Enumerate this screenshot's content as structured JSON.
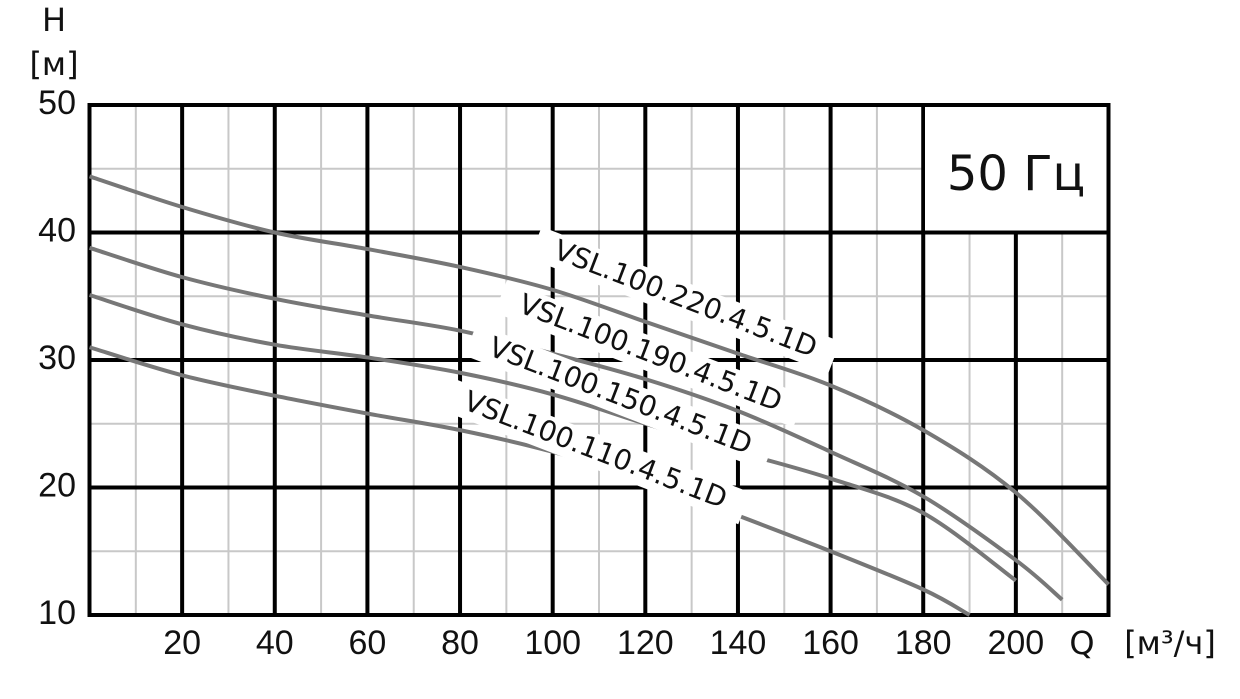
{
  "chart_data": {
    "type": "line",
    "y_label": "H",
    "y_unit": "[м]",
    "x_label": "Q",
    "x_unit": "[м³/ч]",
    "annotation": "50 Гц",
    "xlim": [
      0,
      220
    ],
    "xticks": [
      20,
      40,
      60,
      80,
      100,
      120,
      140,
      160,
      180,
      200
    ],
    "minor_xticks": [
      10,
      30,
      50,
      70,
      90,
      110,
      130,
      150,
      170,
      190,
      210
    ],
    "ylim": [
      10,
      50
    ],
    "yticks": [
      10,
      20,
      30,
      40,
      50
    ],
    "minor_yticks": [
      15,
      25,
      35,
      45
    ],
    "grid": true,
    "series": [
      {
        "name": "VSL.100.220.4.5.1D",
        "color": "#777777",
        "x": [
          0,
          20,
          40,
          60,
          80,
          100,
          120,
          140,
          160,
          180,
          200,
          220
        ],
        "values": [
          44.4,
          42,
          40,
          38.7,
          37.3,
          35.5,
          33,
          30.5,
          28,
          24.5,
          19.6,
          12.4
        ]
      },
      {
        "name": "VSL.100.190.4.5.1D",
        "color": "#777777",
        "x": [
          0,
          20,
          40,
          60,
          80,
          100,
          120,
          140,
          160,
          180,
          200,
          210
        ],
        "values": [
          38.8,
          36.5,
          34.8,
          33.5,
          32.3,
          30.5,
          28.5,
          26,
          22.8,
          19.3,
          14.3,
          11.2
        ]
      },
      {
        "name": "VSL.100.150.4.5.1D",
        "color": "#777777",
        "x": [
          0,
          20,
          40,
          60,
          80,
          100,
          120,
          140,
          160,
          180,
          200
        ],
        "values": [
          35.1,
          32.8,
          31.2,
          30.2,
          29,
          27.3,
          25,
          22.8,
          20.7,
          18,
          12.7
        ]
      },
      {
        "name": "VSL.100.110.4.5.1D",
        "color": "#777777",
        "x": [
          0,
          20,
          40,
          60,
          80,
          100,
          120,
          140,
          160,
          180,
          190
        ],
        "values": [
          31,
          28.8,
          27.2,
          25.8,
          24.5,
          22.8,
          20.6,
          17.8,
          15,
          12,
          10
        ]
      }
    ]
  }
}
